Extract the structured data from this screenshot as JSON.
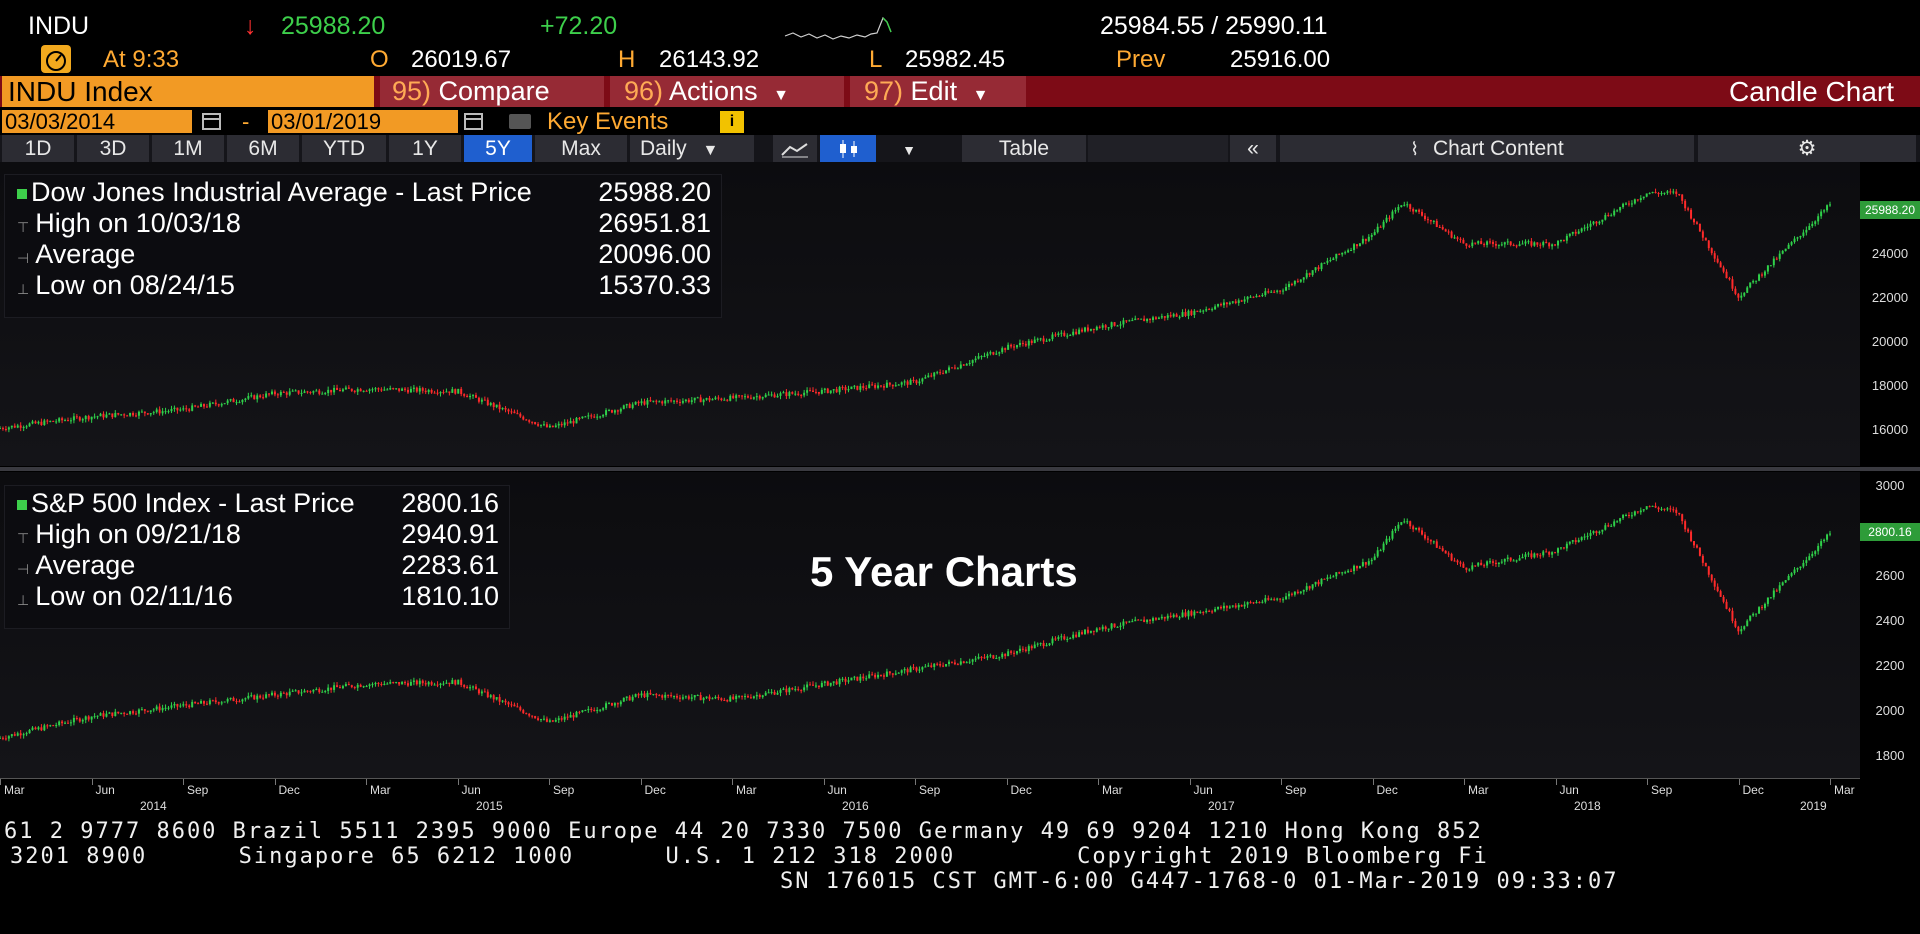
{
  "quote": {
    "ticker": "INDU",
    "last": "25988.20",
    "change": "+72.20",
    "bid_ask": "25984.55 / 25990.11",
    "time_label": "At 9:33",
    "open_label": "O",
    "open": "26019.67",
    "high_label": "H",
    "high": "26143.92",
    "low_label": "L",
    "low": "25982.45",
    "prev_label": "Prev",
    "prev": "25916.00"
  },
  "title_bar": {
    "security": "INDU Index",
    "compare_num": "95)",
    "compare": "Compare",
    "actions_num": "96)",
    "actions": "Actions",
    "edit_num": "97)",
    "edit": "Edit",
    "chart_type": "Candle Chart"
  },
  "date_range": {
    "start": "03/03/2014",
    "separator": "-",
    "end": "03/01/2019",
    "key_events": "Key Events"
  },
  "tabs": {
    "periods": [
      "1D",
      "3D",
      "1M",
      "6M",
      "YTD",
      "1Y",
      "5Y",
      "Max"
    ],
    "selected": "5Y",
    "frequency": "Daily",
    "table": "Table",
    "chart_content": "Chart Content"
  },
  "overlay_title": "5 Year Charts",
  "panels": [
    {
      "name": "Dow Jones Industrial Average - Last Price",
      "last": "25988.20",
      "high_label": "High on 10/03/18",
      "high": "26951.81",
      "avg_label": "Average",
      "avg": "20096.00",
      "low_label": "Low on 08/24/15",
      "low": "15370.33",
      "badge": "25988.20",
      "ticks": [
        "24000",
        "22000",
        "20000",
        "18000",
        "16000"
      ]
    },
    {
      "name": "S&P 500 Index - Last Price",
      "last": "2800.16",
      "high_label": "High on 09/21/18",
      "high": "2940.91",
      "avg_label": "Average",
      "avg": "2283.61",
      "low_label": "Low on 02/11/16",
      "low": "1810.10",
      "badge": "2800.16",
      "ticks": [
        "3000",
        "2800",
        "2600",
        "2400",
        "2200",
        "2000",
        "1800"
      ]
    }
  ],
  "x_axis": {
    "months": [
      "Mar",
      "Jun",
      "Sep",
      "Dec",
      "Mar",
      "Jun",
      "Sep",
      "Dec",
      "Mar",
      "Jun",
      "Sep",
      "Dec",
      "Mar",
      "Jun",
      "Sep",
      "Dec",
      "Mar",
      "Jun",
      "Sep",
      "Dec",
      "Mar"
    ],
    "years": [
      "2014",
      "2015",
      "2016",
      "2017",
      "2018",
      "2019"
    ]
  },
  "chart_data": [
    {
      "type": "line",
      "title": "Dow Jones Industrial Average - Last Price",
      "x": [
        "2014-03",
        "2014-06",
        "2014-09",
        "2014-12",
        "2015-03",
        "2015-06",
        "2015-09",
        "2015-12",
        "2016-03",
        "2016-06",
        "2016-09",
        "2016-12",
        "2017-03",
        "2017-06",
        "2017-09",
        "2017-12",
        "2018-01",
        "2018-03",
        "2018-06",
        "2018-09",
        "2018-10",
        "2018-12",
        "2019-03"
      ],
      "series": [
        {
          "values": [
            16300,
            16800,
            17100,
            17800,
            18000,
            17900,
            16300,
            17400,
            17600,
            17900,
            18300,
            19800,
            20700,
            21300,
            22300,
            24700,
            26100,
            24300,
            24300,
            26500,
            26500,
            22000,
            26000
          ]
        }
      ],
      "ylim": [
        15000,
        27500
      ]
    },
    {
      "type": "line",
      "title": "S&P 500 Index - Last Price",
      "x": [
        "2014-03",
        "2014-06",
        "2014-09",
        "2014-12",
        "2015-03",
        "2015-06",
        "2015-09",
        "2015-12",
        "2016-03",
        "2016-06",
        "2016-09",
        "2016-12",
        "2017-03",
        "2017-06",
        "2017-09",
        "2017-12",
        "2018-01",
        "2018-03",
        "2018-06",
        "2018-09",
        "2018-10",
        "2018-12",
        "2019-03"
      ],
      "series": [
        {
          "values": [
            1850,
            1950,
            2000,
            2050,
            2100,
            2110,
            1920,
            2050,
            2030,
            2100,
            2170,
            2240,
            2360,
            2430,
            2500,
            2680,
            2870,
            2640,
            2720,
            2930,
            2900,
            2350,
            2800
          ]
        }
      ],
      "ylim": [
        1700,
        3050
      ]
    }
  ],
  "footer": {
    "line1": "61 2 9777 8600 Brazil 5511 2395 9000 Europe 44 20 7330 7500 Germany 49 69 9204 1210 Hong Kong 852",
    "line2": "3201 8900      Singapore 65 6212 1000      U.S. 1 212 318 2000        Copyright 2019 Bloomberg Fi",
    "line3": "SN 176015 CST  GMT-6:00 G447-1768-0 01-Mar-2019 09:33:07"
  }
}
